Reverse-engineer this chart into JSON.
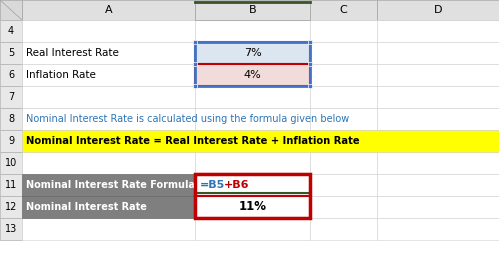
{
  "bg_color": "#ffffff",
  "header_bg": "#e0e0e0",
  "header_col_B_bg": "#4e7c59",
  "row_num_bg": "#e8e8e8",
  "yellow_bg": "#ffff00",
  "dark_gray_bg": "#7f7f7f",
  "light_blue_cell_bg": "#dce6f1",
  "light_red_cell_bg": "#f2dcdb",
  "blue_border": "#4472c4",
  "red_border": "#c00000",
  "green_header_line": "#375623",
  "row5_label": "Real Interest Rate",
  "row5_val": "7%",
  "row6_label": "Inflation Rate",
  "row6_val": "4%",
  "row8_text": "Nominal Interest Rate is calculated using the formula given below",
  "row9_text": "Nominal Interest Rate = Real Interest Rate + Inflation Rate",
  "row11_label": "Nominal Interest Rate Formula",
  "row11_val_blue": "=B5",
  "row11_val_plus_red": "+B6",
  "row12_label": "Nominal Interest Rate",
  "row12_val": "11%",
  "blue_text_color": "#2e75b6",
  "red_text_color": "#c00000",
  "col_letters": [
    "A",
    "B",
    "C",
    "D"
  ],
  "row_nums": [
    "4",
    "5",
    "6",
    "7",
    "8",
    "9",
    "10",
    "11",
    "12",
    "13"
  ],
  "figw": 4.99,
  "figh": 2.58,
  "dpi": 100
}
